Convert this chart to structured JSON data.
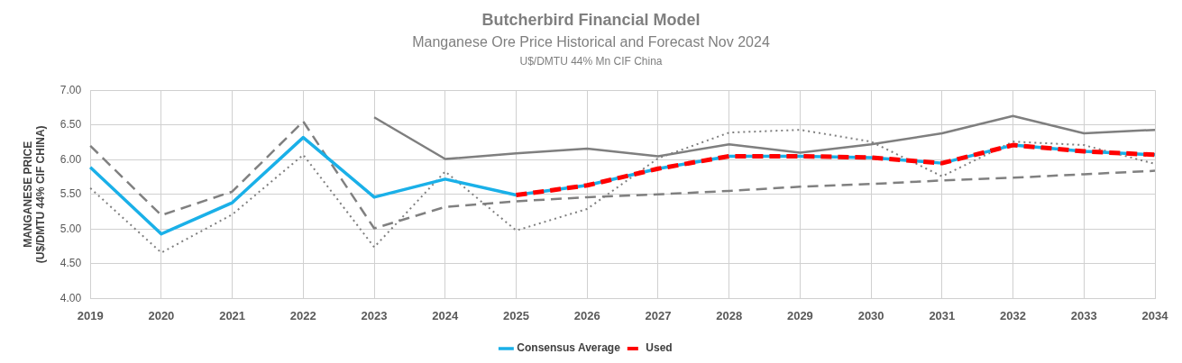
{
  "chart_data": {
    "type": "line",
    "title": "Butcherbird Financial Model",
    "subtitle": "Manganese Ore Price Historical and Forecast Nov 2024",
    "annotations": [
      "U$/DMTU 44% Mn CIF China"
    ],
    "ylabel": "MANGANESE PRICE\n(U$/DMTU 44% CIF CHINA)",
    "categories": [
      "2019",
      "2020",
      "2021",
      "2022",
      "2023",
      "2024",
      "2025",
      "2026",
      "2027",
      "2028",
      "2029",
      "2030",
      "2031",
      "2032",
      "2033",
      "2034"
    ],
    "series": [
      {
        "color": "#7f7f7f",
        "line_style": "solid",
        "values": [
          null,
          null,
          null,
          null,
          6.61,
          6.01,
          6.09,
          6.16,
          6.05,
          6.22,
          6.1,
          6.22,
          6.38,
          6.63,
          6.38,
          6.43
        ]
      },
      {
        "color": "#808080",
        "line_style": "dashed",
        "values": [
          6.2,
          5.2,
          5.54,
          6.55,
          5.01,
          5.32,
          5.4,
          5.46,
          5.5,
          5.55,
          5.61,
          5.65,
          5.7,
          5.74,
          5.79,
          5.84
        ]
      },
      {
        "color": "#7f7f7f",
        "line_style": "dotted",
        "values": [
          5.59,
          4.66,
          5.21,
          6.07,
          4.74,
          5.83,
          4.98,
          5.29,
          6.02,
          6.39,
          6.43,
          6.26,
          5.76,
          6.26,
          6.21,
          5.94
        ]
      },
      {
        "name": "Consensus Average",
        "color": "#1ab0e8",
        "line_style": "solid",
        "values": [
          5.89,
          4.93,
          5.38,
          6.32,
          5.46,
          5.72,
          5.49,
          5.63,
          5.87,
          6.05,
          6.05,
          6.03,
          5.95,
          6.21,
          6.12,
          6.07
        ]
      },
      {
        "name": "Used",
        "color": "#ff0000",
        "line_style": "dashed",
        "values": [
          null,
          null,
          null,
          null,
          null,
          null,
          5.49,
          5.63,
          5.87,
          6.05,
          6.05,
          6.03,
          5.95,
          6.21,
          6.12,
          6.07
        ]
      }
    ],
    "ylim": [
      4,
      7
    ],
    "yticks": [
      {
        "value": 4,
        "label": "4.00"
      },
      {
        "value": 4.5,
        "label": "4.50"
      },
      {
        "value": 5,
        "label": "5.00"
      },
      {
        "value": 5.5,
        "label": "5.50"
      },
      {
        "value": 6,
        "label": "6.00"
      },
      {
        "value": 6.5,
        "label": "6.50"
      },
      {
        "value": 7,
        "label": "7.00"
      }
    ],
    "grid": true,
    "legend": "bottom",
    "marker": "none"
  }
}
